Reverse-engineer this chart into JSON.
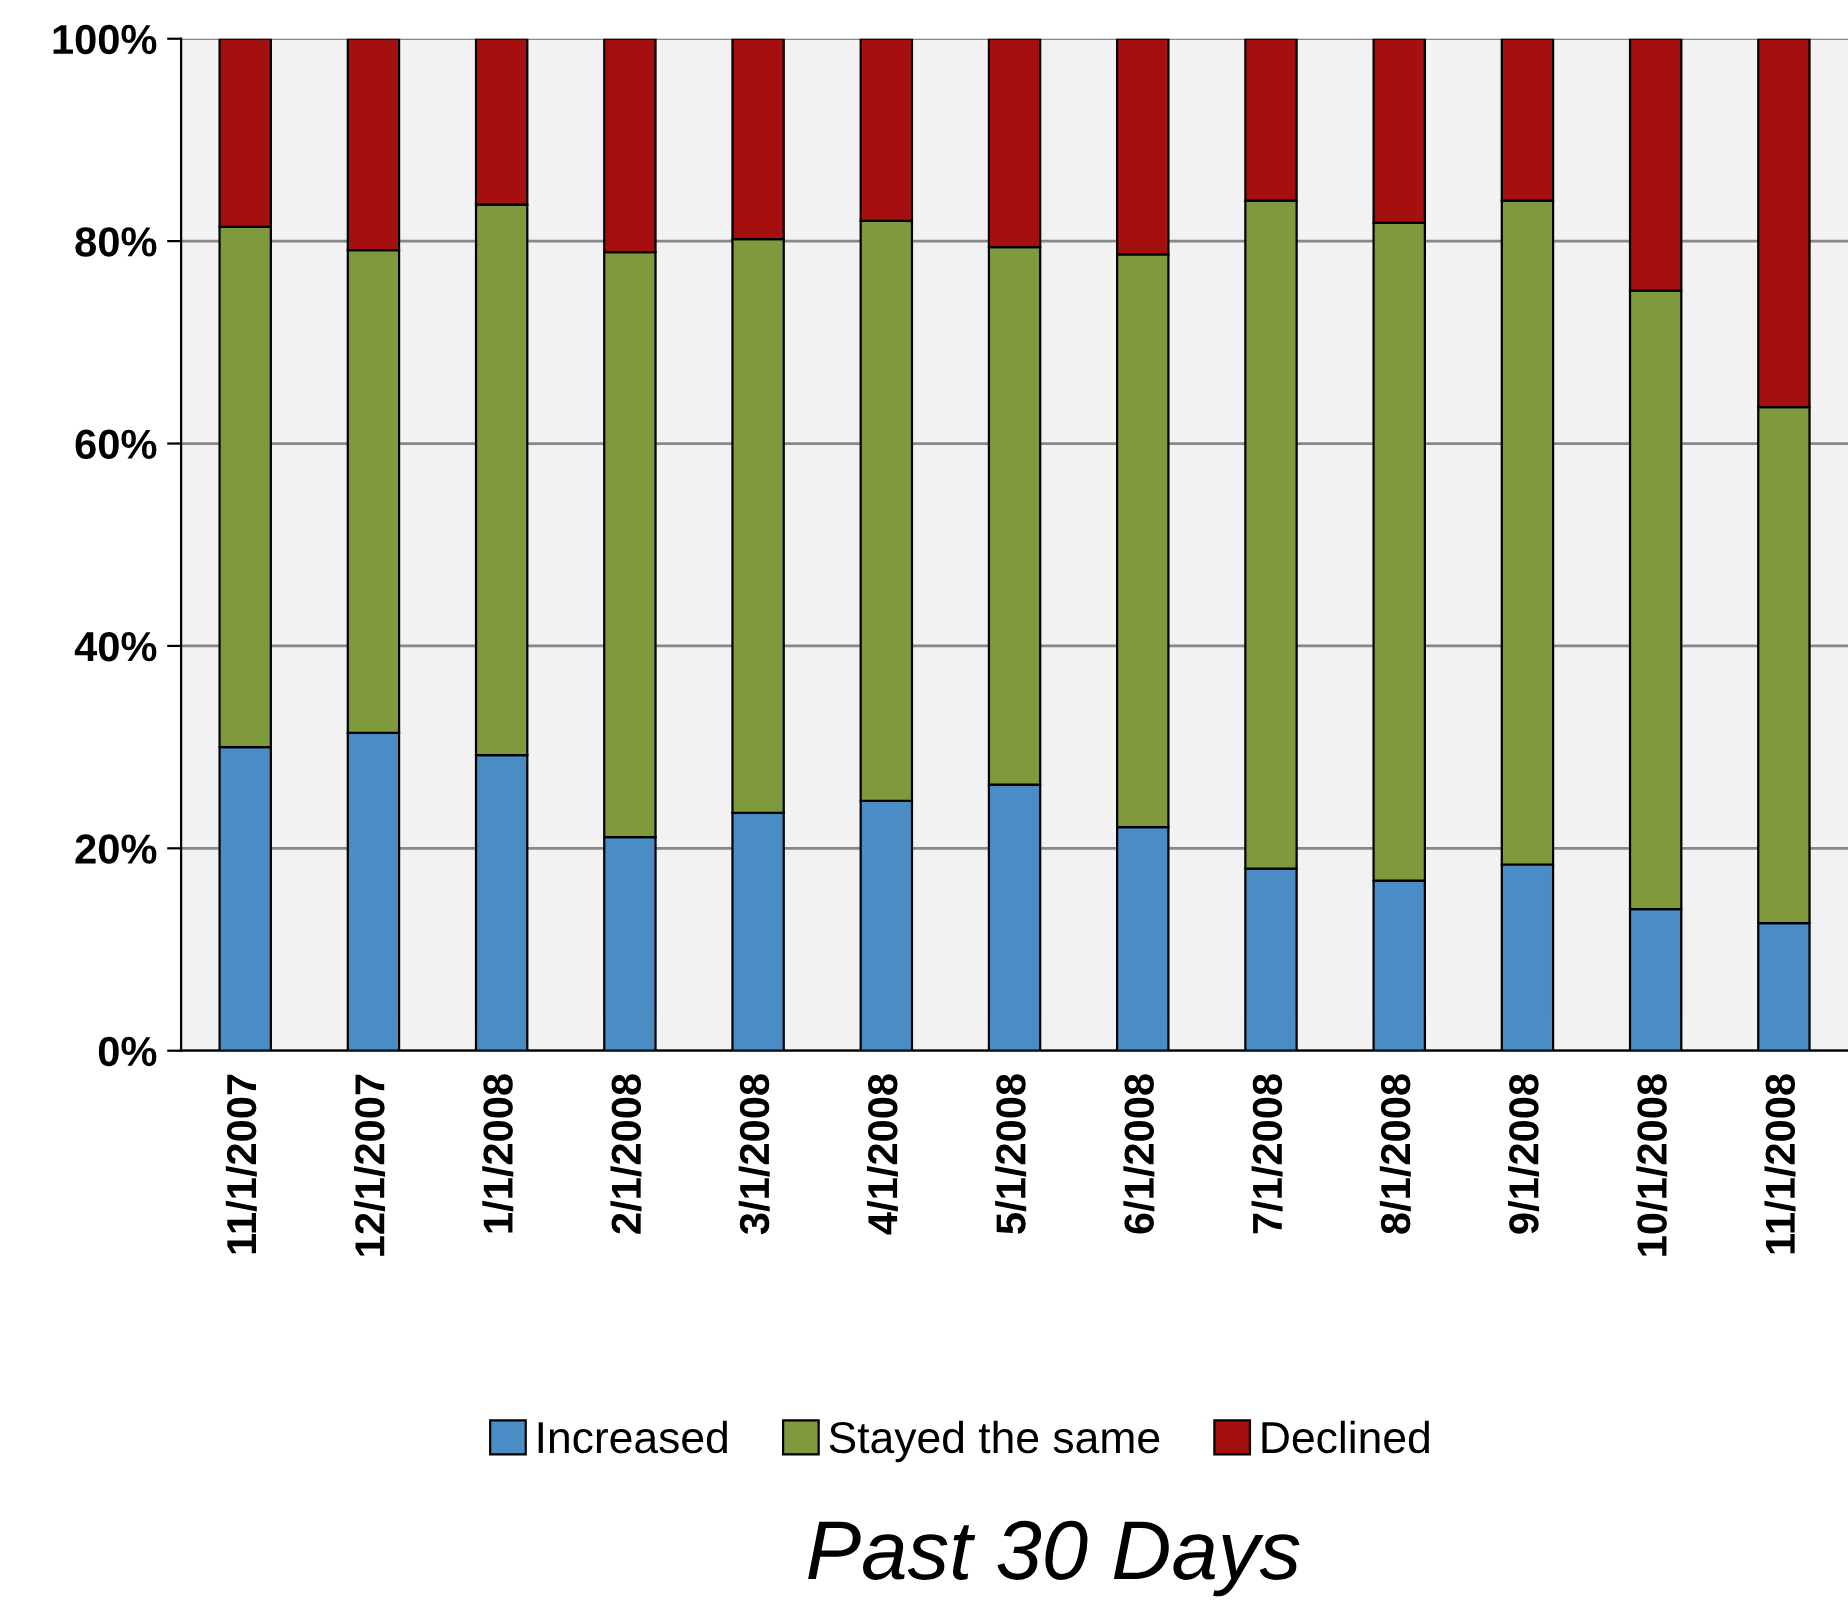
{
  "chart_data": {
    "type": "bar",
    "stacked": true,
    "title": "Past 30 Days",
    "categories": [
      "11/1/2007",
      "12/1/2007",
      "1/1/2008",
      "2/1/2008",
      "3/1/2008",
      "4/1/2008",
      "5/1/2008",
      "6/1/2008",
      "7/1/2008",
      "8/1/2008",
      "9/1/2008",
      "10/1/2008",
      "11/1/2008"
    ],
    "series": [
      {
        "name": "Increased",
        "color": "#4a8cc4",
        "values": [
          30.0,
          31.4,
          29.2,
          21.1,
          23.5,
          24.7,
          26.3,
          22.1,
          18.0,
          16.8,
          18.4,
          14.0,
          12.6
        ]
      },
      {
        "name": "Stayed the same",
        "color": "#7f9a3c",
        "values": [
          51.4,
          47.7,
          54.4,
          57.8,
          56.7,
          57.3,
          53.1,
          56.6,
          66.0,
          65.0,
          65.6,
          61.1,
          51.0
        ]
      },
      {
        "name": "Declined",
        "color": "#a50f0f",
        "values": [
          18.6,
          20.9,
          16.4,
          21.1,
          19.8,
          18.0,
          20.6,
          21.3,
          16.0,
          18.2,
          16.0,
          24.9,
          36.4
        ]
      }
    ],
    "ylim": [
      0,
      100
    ],
    "yticks": [
      {
        "value": 0,
        "label": "0%"
      },
      {
        "value": 20,
        "label": "20%"
      },
      {
        "value": 40,
        "label": "40%"
      },
      {
        "value": 60,
        "label": "60%"
      },
      {
        "value": 80,
        "label": "80%"
      },
      {
        "value": 100,
        "label": "100%"
      }
    ],
    "grid": "y",
    "legend": "bottom"
  }
}
